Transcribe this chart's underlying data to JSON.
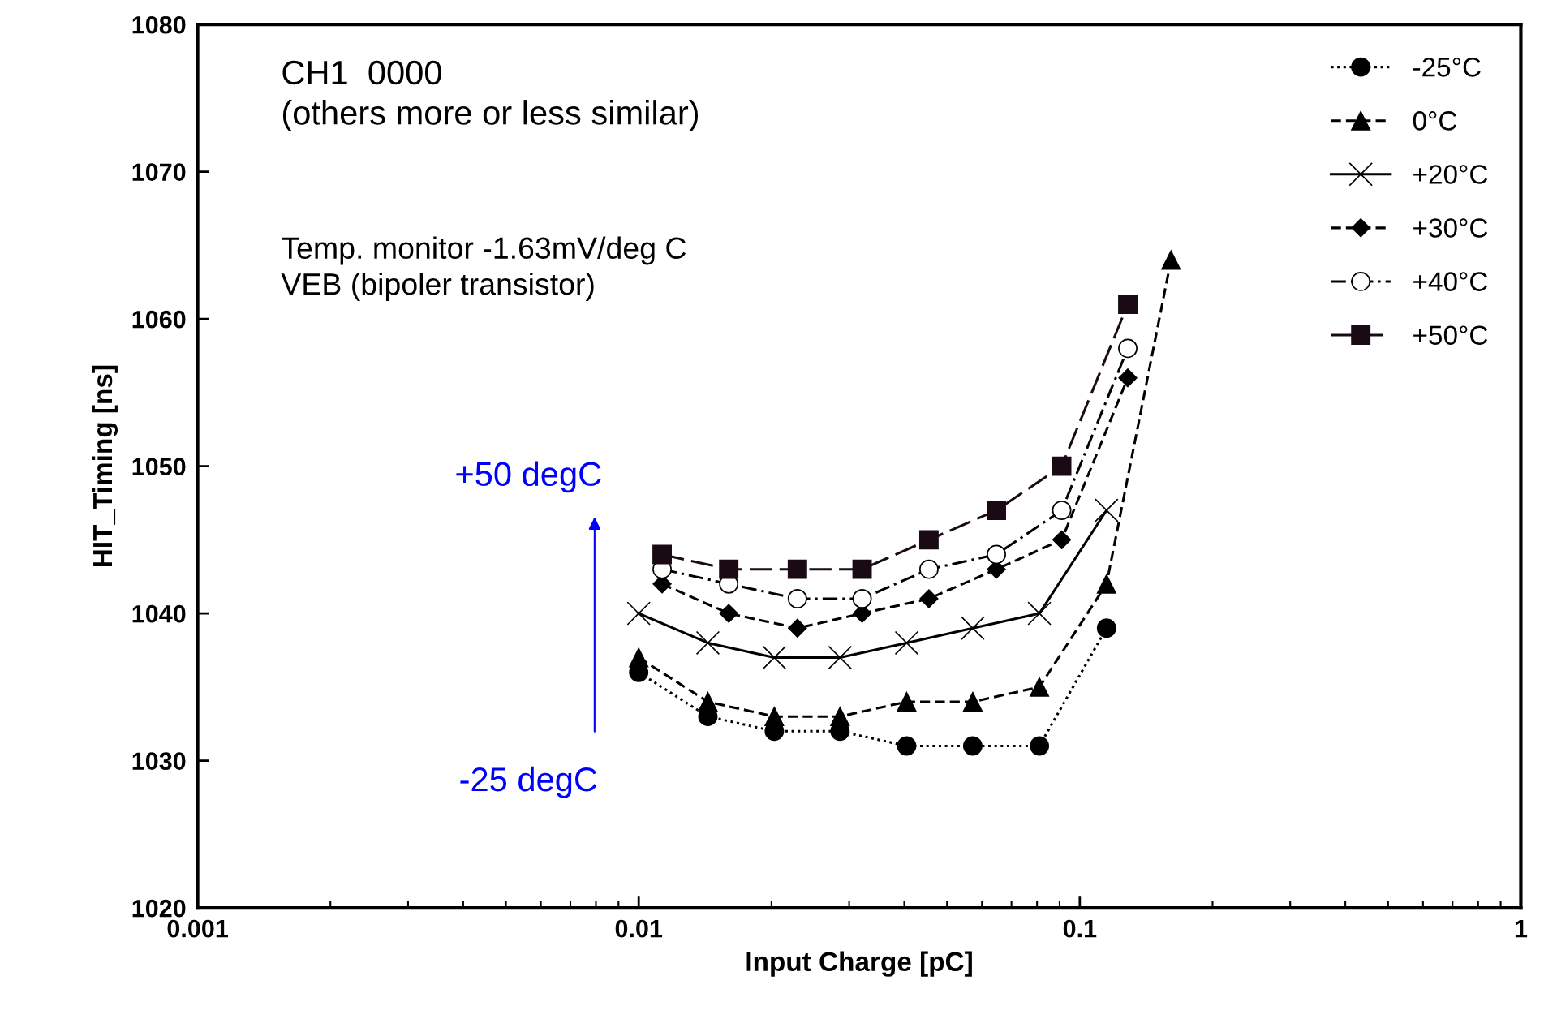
{
  "chart_data": {
    "type": "line",
    "xlabel": "Input Charge [pC]",
    "ylabel": "HIT_Timing [ns]",
    "log": "x",
    "xlim": [
      0.001,
      1
    ],
    "xticks": [
      0.001,
      0.01,
      0.1,
      1
    ],
    "ylim": [
      1020,
      1080
    ],
    "yticks": [
      1020,
      1030,
      1040,
      1050,
      1060,
      1070,
      1080
    ],
    "grid": false,
    "legend": "top right",
    "series": [
      {
        "name": "-25°C",
        "color": "#000000",
        "marker": "circle",
        "line_style": "dotted",
        "x": [
          0.01,
          0.01435,
          0.0203,
          0.0286,
          0.0405,
          0.0572,
          0.081,
          0.115
        ],
        "values": [
          1036,
          1033,
          1032,
          1032,
          1031,
          1031,
          1031,
          1039
        ]
      },
      {
        "name": "0°C",
        "color": "#000000",
        "marker": "triangle",
        "line_style": "dashed",
        "x": [
          0.01,
          0.01435,
          0.0203,
          0.0286,
          0.0405,
          0.0572,
          0.081,
          0.115,
          0.161
        ],
        "values": [
          1037,
          1034,
          1033,
          1033,
          1034,
          1034,
          1035,
          1042,
          1064
        ]
      },
      {
        "name": "+20°C",
        "color": "#000000",
        "marker": "cross",
        "line_style": "solid",
        "x": [
          0.01,
          0.01435,
          0.0203,
          0.0286,
          0.0405,
          0.0572,
          0.081,
          0.115
        ],
        "values": [
          1040,
          1038,
          1037,
          1037,
          1038,
          1039,
          1040,
          1047
        ]
      },
      {
        "name": "+30°C",
        "color": "#000000",
        "marker": "diamond",
        "line_style": "dashed",
        "x": [
          0.0113,
          0.016,
          0.0229,
          0.0321,
          0.0455,
          0.0647,
          0.091,
          0.1285
        ],
        "values": [
          1042,
          1040,
          1039,
          1040,
          1041,
          1043,
          1045,
          1056
        ]
      },
      {
        "name": "+40°C",
        "color": "#000000",
        "marker": "open circle",
        "line_style": "dashdot",
        "x": [
          0.0113,
          0.016,
          0.0229,
          0.0321,
          0.0455,
          0.0647,
          0.091,
          0.1285
        ],
        "values": [
          1043,
          1042,
          1041,
          1041,
          1043,
          1044,
          1047,
          1058
        ]
      },
      {
        "name": "+50°C",
        "color": "#1a0a14",
        "marker": "square",
        "line_style": "longdash",
        "x": [
          0.0113,
          0.016,
          0.0229,
          0.0321,
          0.0455,
          0.0647,
          0.091,
          0.1285
        ],
        "values": [
          1044,
          1043,
          1043,
          1043,
          1045,
          1047,
          1050,
          1061
        ]
      }
    ],
    "annotations": [
      "CH1  0000\n(others more or less similar)",
      "Temp. monitor -1.63mV/deg C\nVEB (bipoler transistor)",
      "+50 degC",
      "-25 degC"
    ]
  }
}
